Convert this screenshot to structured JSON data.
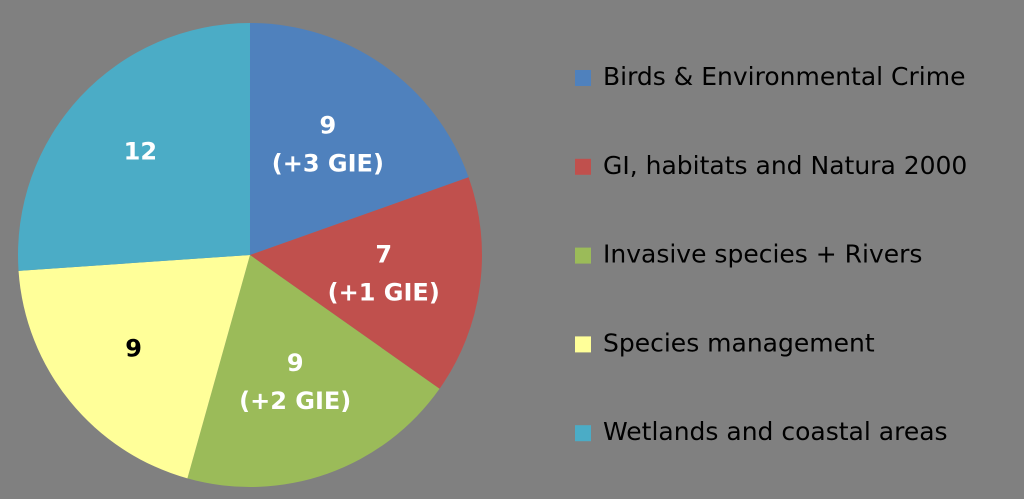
{
  "chart_data": {
    "type": "pie",
    "categories": [
      "Birds & Environmental Crime",
      "GI, habitats and Natura 2000",
      "Invasive species + Rivers",
      "Species management",
      "Wetlands and coastal areas"
    ],
    "values": [
      9,
      7,
      9,
      9,
      12
    ],
    "extra_labels": [
      "(+3 GIE)",
      "(+1 GIE)",
      "(+2 GIE)",
      null,
      null
    ],
    "colors": [
      "#4f81bd",
      "#c0504d",
      "#9bbb59",
      "#ffff99",
      "#4bacc6"
    ],
    "legend": "right"
  }
}
